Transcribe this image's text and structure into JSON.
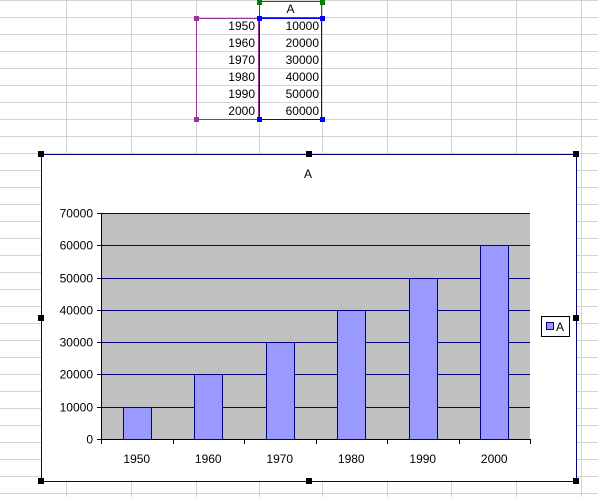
{
  "sheet": {
    "column_header": "A",
    "rows": [
      {
        "year": "1950",
        "value": "10000"
      },
      {
        "year": "1960",
        "value": "20000"
      },
      {
        "year": "1970",
        "value": "30000"
      },
      {
        "year": "1980",
        "value": "40000"
      },
      {
        "year": "1990",
        "value": "50000"
      },
      {
        "year": "2000",
        "value": "60000"
      }
    ]
  },
  "colors": {
    "plot_area": "#c0c0c0",
    "bar_fill": "#9999ff",
    "bar_stroke": "#000080",
    "gridline": "#000080",
    "category_range": "#993399",
    "value_range": "#0000ff",
    "series_name_range": "#008000",
    "chart_border": "#000080"
  },
  "chart_data": {
    "type": "bar",
    "title": "A",
    "categories": [
      "1950",
      "1960",
      "1970",
      "1980",
      "1990",
      "2000"
    ],
    "series": [
      {
        "name": "A",
        "values": [
          10000,
          20000,
          30000,
          40000,
          50000,
          60000
        ]
      }
    ],
    "ylim": [
      0,
      70000
    ],
    "yticks": [
      "0",
      "10000",
      "20000",
      "30000",
      "40000",
      "50000",
      "60000",
      "70000"
    ],
    "xlabel": "",
    "ylabel": "",
    "grid": true,
    "legend": "right",
    "legend_label": "A"
  }
}
